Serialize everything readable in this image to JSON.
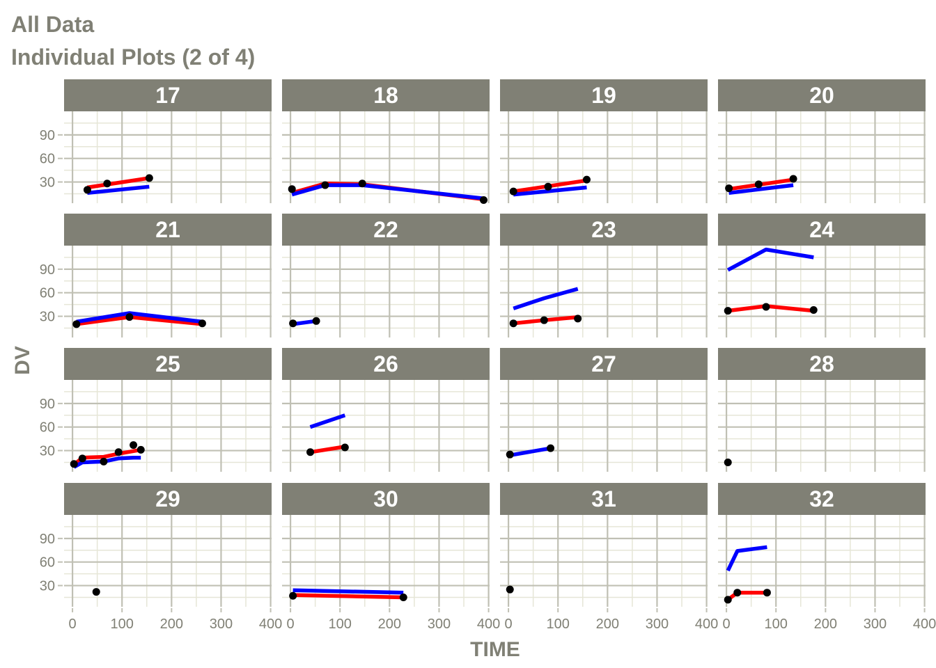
{
  "title": "All Data",
  "subtitle": "Individual Plots (2 of 4)",
  "chart_data": {
    "type": "line",
    "xlabel": "TIME",
    "ylabel": "DV",
    "xlim": [
      -17,
      402
    ],
    "ylim": [
      3,
      120
    ],
    "xticks": [
      0,
      100,
      200,
      300,
      400
    ],
    "yticks": [
      30,
      60,
      90
    ],
    "grid": true,
    "colors": {
      "observed": "#000000",
      "red_line": "#ff0000",
      "blue_line": "#0000ff",
      "strip": "#808075",
      "panel_bg": "#ffffff",
      "grid_major": "#c0c0b4",
      "grid_minor": "#e6e6d7"
    },
    "panels": [
      {
        "id": "17",
        "points": [
          [
            30,
            20
          ],
          [
            70,
            28
          ],
          [
            155,
            35
          ]
        ],
        "red": [
          [
            30,
            23
          ],
          [
            155,
            35
          ]
        ],
        "blue": [
          [
            30,
            16
          ],
          [
            155,
            24
          ]
        ]
      },
      {
        "id": "18",
        "points": [
          [
            3,
            21
          ],
          [
            70,
            26
          ],
          [
            145,
            28
          ],
          [
            390,
            7
          ]
        ],
        "red": [
          [
            3,
            16
          ],
          [
            70,
            28
          ],
          [
            145,
            27
          ],
          [
            390,
            8
          ]
        ],
        "blue": [
          [
            3,
            14
          ],
          [
            70,
            26
          ],
          [
            145,
            26
          ],
          [
            390,
            9
          ]
        ]
      },
      {
        "id": "19",
        "points": [
          [
            10,
            18
          ],
          [
            80,
            24
          ],
          [
            158,
            33
          ]
        ],
        "red": [
          [
            10,
            18
          ],
          [
            158,
            32
          ]
        ],
        "blue": [
          [
            10,
            14
          ],
          [
            158,
            23
          ]
        ]
      },
      {
        "id": "20",
        "points": [
          [
            5,
            22
          ],
          [
            65,
            27
          ],
          [
            135,
            34
          ]
        ],
        "red": [
          [
            5,
            21
          ],
          [
            135,
            33
          ]
        ],
        "blue": [
          [
            5,
            16
          ],
          [
            135,
            26
          ]
        ]
      },
      {
        "id": "21",
        "points": [
          [
            8,
            20
          ],
          [
            115,
            29
          ],
          [
            262,
            21
          ]
        ],
        "red": [
          [
            8,
            20
          ],
          [
            115,
            29
          ],
          [
            262,
            20
          ]
        ],
        "blue": [
          [
            8,
            23
          ],
          [
            115,
            34
          ],
          [
            262,
            23
          ]
        ]
      },
      {
        "id": "22",
        "points": [
          [
            5,
            21
          ],
          [
            52,
            24
          ]
        ],
        "red": [],
        "blue": [
          [
            5,
            20
          ],
          [
            52,
            24
          ]
        ]
      },
      {
        "id": "23",
        "points": [
          [
            10,
            21
          ],
          [
            72,
            25
          ],
          [
            140,
            27
          ]
        ],
        "red": [
          [
            10,
            21
          ],
          [
            72,
            25
          ],
          [
            140,
            29
          ]
        ],
        "blue": [
          [
            10,
            40
          ],
          [
            72,
            53
          ],
          [
            140,
            65
          ]
        ]
      },
      {
        "id": "24",
        "points": [
          [
            3,
            37
          ],
          [
            80,
            42
          ],
          [
            176,
            38
          ]
        ],
        "red": [
          [
            3,
            37
          ],
          [
            80,
            43
          ],
          [
            176,
            37
          ]
        ],
        "blue": [
          [
            3,
            89
          ],
          [
            80,
            115
          ],
          [
            176,
            105
          ]
        ]
      },
      {
        "id": "25",
        "points": [
          [
            3,
            13
          ],
          [
            20,
            20
          ],
          [
            63,
            16
          ],
          [
            93,
            28
          ],
          [
            123,
            37
          ],
          [
            138,
            31
          ]
        ],
        "red": [
          [
            3,
            12
          ],
          [
            20,
            21
          ],
          [
            63,
            22
          ],
          [
            93,
            26
          ],
          [
            138,
            31
          ]
        ],
        "blue": [
          [
            3,
            9
          ],
          [
            20,
            15
          ],
          [
            63,
            16
          ],
          [
            93,
            20
          ],
          [
            123,
            21
          ],
          [
            138,
            21
          ]
        ]
      },
      {
        "id": "26",
        "points": [
          [
            40,
            28
          ],
          [
            110,
            34
          ]
        ],
        "red": [
          [
            40,
            28
          ],
          [
            110,
            35
          ]
        ],
        "blue": [
          [
            40,
            60
          ],
          [
            110,
            75
          ]
        ]
      },
      {
        "id": "27",
        "points": [
          [
            3,
            25
          ],
          [
            85,
            33
          ]
        ],
        "red": [],
        "blue": [
          [
            3,
            24
          ],
          [
            85,
            33
          ]
        ]
      },
      {
        "id": "28",
        "points": [
          [
            3,
            15
          ]
        ],
        "red": [],
        "blue": []
      },
      {
        "id": "29",
        "points": [
          [
            48,
            22
          ]
        ],
        "red": [],
        "blue": []
      },
      {
        "id": "30",
        "points": [
          [
            5,
            17
          ],
          [
            228,
            15
          ]
        ],
        "red": [
          [
            5,
            18
          ],
          [
            228,
            15
          ]
        ],
        "blue": [
          [
            5,
            24
          ],
          [
            228,
            21
          ]
        ]
      },
      {
        "id": "31",
        "points": [
          [
            3,
            25
          ]
        ],
        "red": [],
        "blue": []
      },
      {
        "id": "32",
        "points": [
          [
            3,
            12
          ],
          [
            22,
            21
          ],
          [
            82,
            21
          ]
        ],
        "red": [
          [
            3,
            12
          ],
          [
            22,
            21
          ],
          [
            82,
            21
          ]
        ],
        "blue": [
          [
            3,
            49
          ],
          [
            22,
            74
          ],
          [
            82,
            79
          ]
        ]
      }
    ]
  }
}
